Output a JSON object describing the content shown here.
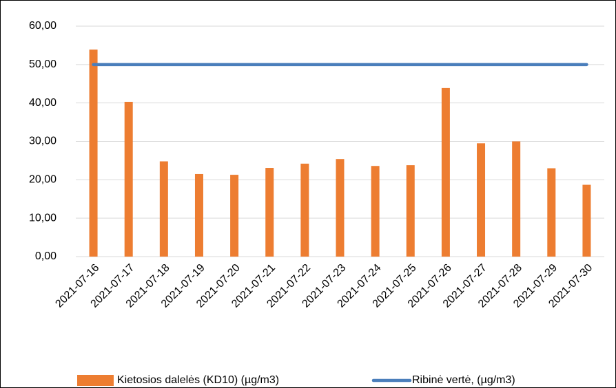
{
  "chart_data": {
    "type": "bar",
    "categories": [
      "2021-07-16",
      "2021-07-17",
      "2021-07-18",
      "2021-07-19",
      "2021-07-20",
      "2021-07-21",
      "2021-07-22",
      "2021-07-23",
      "2021-07-24",
      "2021-07-25",
      "2021-07-26",
      "2021-07-27",
      "2021-07-28",
      "2021-07-29",
      "2021-07-30"
    ],
    "series": [
      {
        "name": "Kietosios dalelės (KD10) (µg/m3)",
        "type": "bar",
        "color": "#ed7d31",
        "values": [
          53.9,
          40.3,
          24.8,
          21.5,
          21.3,
          23.1,
          24.2,
          25.4,
          23.6,
          23.8,
          43.9,
          29.5,
          30.0,
          23.0,
          18.7
        ]
      },
      {
        "name": "Ribinė vertė, (µg/m3)",
        "type": "line",
        "color": "#4a7ebb",
        "values": [
          50,
          50,
          50,
          50,
          50,
          50,
          50,
          50,
          50,
          50,
          50,
          50,
          50,
          50,
          50
        ]
      }
    ],
    "ylim": [
      0,
      60
    ],
    "yticks": [
      {
        "value": 0,
        "label": "0,00"
      },
      {
        "value": 10,
        "label": "10,00"
      },
      {
        "value": 20,
        "label": "20,00"
      },
      {
        "value": 30,
        "label": "30,00"
      },
      {
        "value": 40,
        "label": "40,00"
      },
      {
        "value": 50,
        "label": "50,00"
      },
      {
        "value": 60,
        "label": "60,00"
      }
    ],
    "grid": true
  }
}
